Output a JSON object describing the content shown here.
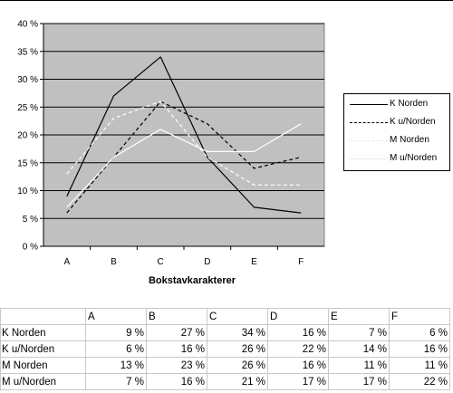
{
  "chart_data": {
    "type": "line",
    "categories": [
      "A",
      "B",
      "C",
      "D",
      "E",
      "F"
    ],
    "xlabel": "Bokstavkarakterer",
    "ylabel": "",
    "ylim": [
      0,
      40
    ],
    "yticks": [
      "0 %",
      "5 %",
      "10 %",
      "15 %",
      "20 %",
      "25 %",
      "30 %",
      "35 %",
      "40 %"
    ],
    "grid": true,
    "legend_position": "right",
    "plot_background": "#c0c0c0",
    "series": [
      {
        "name": "K Norden",
        "values": [
          9,
          27,
          34,
          16,
          7,
          6
        ],
        "color": "#000000",
        "dash": "solid"
      },
      {
        "name": "K u/Norden",
        "values": [
          6,
          16,
          26,
          22,
          14,
          16
        ],
        "color": "#000000",
        "dash": "dashed"
      },
      {
        "name": "M Norden",
        "values": [
          13,
          23,
          26,
          16,
          11,
          11
        ],
        "color": "#ffffff",
        "dash": "dashed"
      },
      {
        "name": "M u/Norden",
        "values": [
          7,
          16,
          21,
          17,
          17,
          22
        ],
        "color": "#ffffff",
        "dash": "solid"
      }
    ]
  },
  "table": {
    "corner": "",
    "headers": [
      "A",
      "B",
      "C",
      "D",
      "E",
      "F"
    ],
    "rows": [
      {
        "label": "K Norden",
        "cells": [
          "9 %",
          "27 %",
          "34 %",
          "16 %",
          "7 %",
          "6 %"
        ]
      },
      {
        "label": "K u/Norden",
        "cells": [
          "6 %",
          "16 %",
          "26 %",
          "22 %",
          "14 %",
          "16 %"
        ]
      },
      {
        "label": "M Norden",
        "cells": [
          "13 %",
          "23 %",
          "26 %",
          "16 %",
          "11 %",
          "11 %"
        ]
      },
      {
        "label": "M u/Norden",
        "cells": [
          "7 %",
          "16 %",
          "21 %",
          "17 %",
          "17 %",
          "22 %"
        ]
      }
    ]
  }
}
